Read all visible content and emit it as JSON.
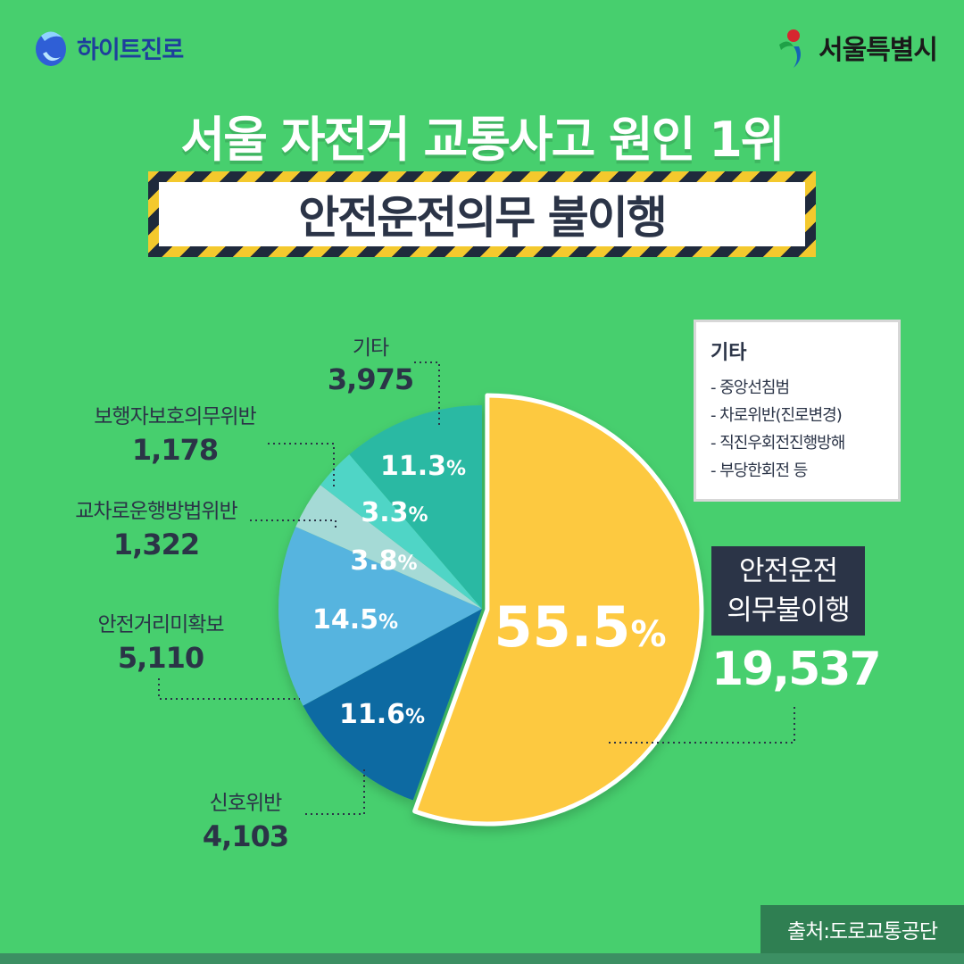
{
  "logo_left": {
    "text": "하이트진로"
  },
  "logo_right": {
    "text": "서울특별시"
  },
  "title": "서울 자전거 교통사고 원인 1위",
  "subtitle": "안전운전의무 불이행",
  "legend_box": {
    "title": "기타",
    "items": [
      "- 중앙선침범",
      "- 차로위반(진로변경)",
      "- 직진우회전진행방해",
      "- 부당한회전 등"
    ]
  },
  "highlight": {
    "line1": "안전운전",
    "line2": "의무불이행",
    "value": "19,537"
  },
  "source": "출처:도로교통공단",
  "chart_data": {
    "type": "pie",
    "slices": [
      {
        "name": "안전운전의무불이행",
        "count": "19,537",
        "percent": 55.5,
        "color": "#fdc93f"
      },
      {
        "name": "신호위반",
        "count": "4,103",
        "percent": 11.6,
        "color": "#0e6ba2"
      },
      {
        "name": "안전거리미확보",
        "count": "5,110",
        "percent": 14.5,
        "color": "#56b4df"
      },
      {
        "name": "교차로운행방법위반",
        "count": "1,322",
        "percent": 3.8,
        "color": "#a5dad6"
      },
      {
        "name": "보행자보호의무위반",
        "count": "1,178",
        "percent": 3.3,
        "color": "#4fd5c6"
      },
      {
        "name": "기타",
        "count": "3,975",
        "percent": 11.3,
        "color": "#2cb9a3"
      }
    ],
    "labels": {
      "main": {
        "value": "55.5",
        "unit": "%"
      },
      "signal": {
        "value": "11.6",
        "unit": "%"
      },
      "distance": {
        "value": "14.5",
        "unit": "%"
      },
      "intersection": {
        "value": "3.8",
        "unit": "%"
      },
      "pedestrian": {
        "value": "3.3",
        "unit": "%"
      },
      "other": {
        "value": "11.3",
        "unit": "%"
      }
    }
  }
}
